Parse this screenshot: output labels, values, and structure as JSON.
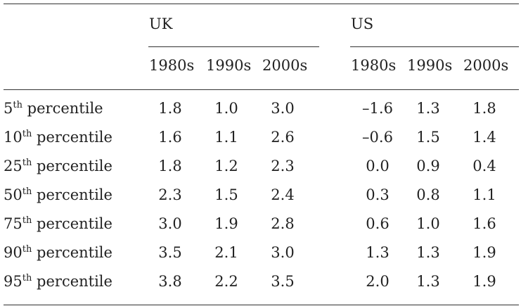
{
  "groups": {
    "uk": "UK",
    "us": "US"
  },
  "decades": {
    "uk": [
      "1980s",
      "1990s",
      "2000s"
    ],
    "us": [
      "1980s",
      "1990s",
      "2000s"
    ]
  },
  "rows": [
    {
      "num": "5",
      "suffix": "th",
      "label": "percentile",
      "uk": [
        "1.8",
        "1.0",
        "3.0"
      ],
      "us": [
        "–1.6",
        "1.3",
        "1.8"
      ]
    },
    {
      "num": "10",
      "suffix": "th",
      "label": "percentile",
      "uk": [
        "1.6",
        "1.1",
        "2.6"
      ],
      "us": [
        "–0.6",
        "1.5",
        "1.4"
      ]
    },
    {
      "num": "25",
      "suffix": "th",
      "label": "percentile",
      "uk": [
        "1.8",
        "1.2",
        "2.3"
      ],
      "us": [
        "0.0",
        "0.9",
        "0.4"
      ]
    },
    {
      "num": "50",
      "suffix": "th",
      "label": "percentile",
      "uk": [
        "2.3",
        "1.5",
        "2.4"
      ],
      "us": [
        "0.3",
        "0.8",
        "1.1"
      ]
    },
    {
      "num": "75",
      "suffix": "th",
      "label": "percentile",
      "uk": [
        "3.0",
        "1.9",
        "2.8"
      ],
      "us": [
        "0.6",
        "1.0",
        "1.6"
      ]
    },
    {
      "num": "90",
      "suffix": "th",
      "label": "percentile",
      "uk": [
        "3.5",
        "2.1",
        "3.0"
      ],
      "us": [
        "1.3",
        "1.3",
        "1.9"
      ]
    },
    {
      "num": "95",
      "suffix": "th",
      "label": "percentile",
      "uk": [
        "3.8",
        "2.2",
        "3.5"
      ],
      "us": [
        "2.0",
        "1.3",
        "1.9"
      ]
    }
  ]
}
